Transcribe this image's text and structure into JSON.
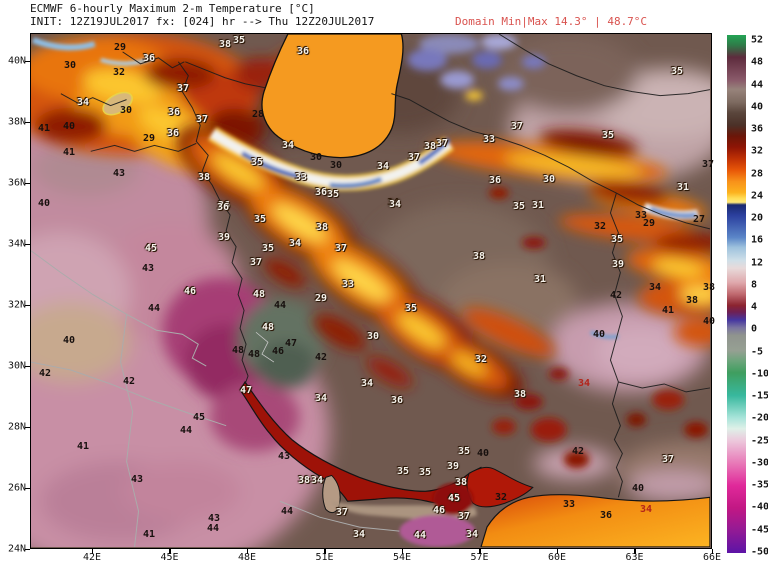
{
  "header": {
    "title": "ECMWF 6-hourly Maximum 2-m Temperature [°C]",
    "init_line": "INIT: 12Z19JUL2017 fx: [024] hr --> Thu 12Z20JUL2017",
    "domain_minmax": "Domain Min|Max 14.3° | 48.7°C",
    "domain_min": "14.3",
    "domain_max": "48.7"
  },
  "palette": {
    "header_red": "#d9534f",
    "caspian_orange": "#f59a20",
    "gulf_dark_red": "#9e1208",
    "arabian_sea_orange": "#f28c12",
    "saudi_pink": "#c88fa5",
    "hot_magenta": "#a63c74",
    "plateau_gray": "#70594f",
    "zagros_yellow": "#ffd84a",
    "cold_blue": "#4a6ec0"
  },
  "axes": {
    "lat_labels": [
      "40N",
      "38N",
      "36N",
      "34N",
      "32N",
      "30N",
      "28N",
      "26N",
      "24N"
    ],
    "lon_labels": [
      "42E",
      "45E",
      "48E",
      "51E",
      "54E",
      "57E",
      "60E",
      "63E",
      "66E"
    ]
  },
  "colorbar": {
    "ticks": [
      "52",
      "48",
      "44",
      "40",
      "36",
      "32",
      "28",
      "24",
      "20",
      "16",
      "12",
      "8",
      "4",
      "0",
      "-5",
      "-10",
      "-15",
      "-20",
      "-25",
      "-30",
      "-35",
      "-40",
      "-45",
      "-50"
    ],
    "stops": [
      [
        0,
        "#23a455"
      ],
      [
        2,
        "#2f7a48"
      ],
      [
        4.3,
        "#5e2b3d"
      ],
      [
        8.7,
        "#8a5a6a"
      ],
      [
        10.5,
        "#97837b"
      ],
      [
        13,
        "#7d6a60"
      ],
      [
        15,
        "#5a463c"
      ],
      [
        17.4,
        "#4b3128"
      ],
      [
        19.5,
        "#6b1608"
      ],
      [
        21.7,
        "#8f1505"
      ],
      [
        24,
        "#c23305"
      ],
      [
        26.1,
        "#e85708"
      ],
      [
        28.3,
        "#f8921a"
      ],
      [
        30.4,
        "#fcb21e"
      ],
      [
        31.5,
        "#ffdc55"
      ],
      [
        32.3,
        "#ffe878"
      ],
      [
        32.8,
        "#1a2a6e"
      ],
      [
        34.8,
        "#2b3f9e"
      ],
      [
        39.1,
        "#5b86c8"
      ],
      [
        41,
        "#9ec2dd"
      ],
      [
        43.5,
        "#cfdfe8"
      ],
      [
        45,
        "#e8dada"
      ],
      [
        47.8,
        "#dfa8ac"
      ],
      [
        50,
        "#c06a70"
      ],
      [
        52.2,
        "#8c2430"
      ],
      [
        53.5,
        "#6e2054"
      ],
      [
        55,
        "#4636a0"
      ],
      [
        56.5,
        "#7a74a0"
      ],
      [
        58,
        "#90948e"
      ],
      [
        60.9,
        "#96a093"
      ],
      [
        63,
        "#6aa47a"
      ],
      [
        65.2,
        "#3f9e5f"
      ],
      [
        69.6,
        "#38b89e"
      ],
      [
        73.9,
        "#a8e4da"
      ],
      [
        76,
        "#dff0e8"
      ],
      [
        78.3,
        "#ecc8dc"
      ],
      [
        82.6,
        "#e87ab8"
      ],
      [
        87,
        "#e0299a"
      ],
      [
        91.3,
        "#c21884"
      ],
      [
        95.7,
        "#921a95"
      ],
      [
        100,
        "#5c14a6"
      ]
    ]
  },
  "map": {
    "labels": [
      [
        "29",
        89,
        14,
        "k"
      ],
      [
        "35",
        208,
        7,
        "w"
      ],
      [
        "38",
        194,
        11,
        "w"
      ],
      [
        "30",
        39,
        32,
        "k"
      ],
      [
        "32",
        88,
        39,
        "k"
      ],
      [
        "36",
        118,
        25,
        "w"
      ],
      [
        "37",
        152,
        55,
        "w"
      ],
      [
        "34",
        52,
        69,
        "w"
      ],
      [
        "30",
        95,
        77,
        "k"
      ],
      [
        "36",
        143,
        79,
        "w"
      ],
      [
        "36",
        142,
        100,
        "w"
      ],
      [
        "29",
        118,
        105,
        "k"
      ],
      [
        "41",
        13,
        95,
        "k"
      ],
      [
        "40",
        38,
        93,
        "k"
      ],
      [
        "28",
        227,
        81,
        "k"
      ],
      [
        "36",
        272,
        18,
        "w"
      ],
      [
        "37",
        171,
        86,
        "w"
      ],
      [
        "43",
        88,
        140,
        "k"
      ],
      [
        "41",
        38,
        119,
        "k"
      ],
      [
        "40",
        13,
        170,
        "k"
      ],
      [
        "34",
        257,
        112,
        "w"
      ],
      [
        "30",
        285,
        124,
        "k"
      ],
      [
        "30",
        305,
        132,
        "k"
      ],
      [
        "34",
        352,
        133,
        "w"
      ],
      [
        "37",
        383,
        124,
        "w"
      ],
      [
        "38",
        399,
        113,
        "w"
      ],
      [
        "37",
        411,
        110,
        "w"
      ],
      [
        "35",
        226,
        129,
        "w"
      ],
      [
        "38",
        173,
        144,
        "w"
      ],
      [
        "33",
        270,
        144,
        "w"
      ],
      [
        "36",
        290,
        159,
        "w"
      ],
      [
        "35",
        302,
        161,
        "w"
      ],
      [
        "36",
        193,
        172,
        "w"
      ],
      [
        "34",
        363,
        170,
        "w"
      ],
      [
        "33",
        458,
        106,
        "w"
      ],
      [
        "36",
        464,
        147,
        "w"
      ],
      [
        "35",
        646,
        38,
        "w"
      ],
      [
        "37",
        486,
        93,
        "w"
      ],
      [
        "35",
        577,
        102,
        "w"
      ],
      [
        "30",
        518,
        146,
        "w"
      ],
      [
        "37",
        677,
        131,
        "k"
      ],
      [
        "31",
        652,
        154,
        "w"
      ],
      [
        "35",
        488,
        173,
        "w"
      ],
      [
        "31",
        507,
        172,
        "w"
      ],
      [
        "33",
        610,
        182,
        "k"
      ],
      [
        "29",
        618,
        190,
        "k"
      ],
      [
        "32",
        569,
        193,
        "k"
      ],
      [
        "35",
        586,
        206,
        "w"
      ],
      [
        "27",
        668,
        186,
        "k"
      ],
      [
        "39",
        587,
        231,
        "w"
      ],
      [
        "31",
        509,
        246,
        "w"
      ],
      [
        "34",
        624,
        254,
        "k"
      ],
      [
        "42",
        585,
        262,
        "k"
      ],
      [
        "38",
        678,
        254,
        "k"
      ],
      [
        "38",
        661,
        267,
        "k"
      ],
      [
        "41",
        637,
        277,
        "k"
      ],
      [
        "40",
        678,
        288,
        "k"
      ],
      [
        "40",
        568,
        301,
        "k"
      ],
      [
        "34",
        364,
        171,
        "w"
      ],
      [
        "38",
        291,
        194,
        "w"
      ],
      [
        "34",
        264,
        210,
        "w"
      ],
      [
        "37",
        310,
        215,
        "w"
      ],
      [
        "33",
        317,
        251,
        "w"
      ],
      [
        "29",
        290,
        265,
        "w"
      ],
      [
        "35",
        380,
        275,
        "w"
      ],
      [
        "38",
        448,
        223,
        "w"
      ],
      [
        "30",
        342,
        303,
        "w"
      ],
      [
        "32",
        450,
        326,
        "w"
      ],
      [
        "36",
        192,
        174,
        "w"
      ],
      [
        "35",
        229,
        186,
        "w"
      ],
      [
        "39",
        193,
        204,
        "w"
      ],
      [
        "35",
        237,
        215,
        "w"
      ],
      [
        "37",
        225,
        229,
        "w"
      ],
      [
        "45",
        120,
        215,
        "w"
      ],
      [
        "43",
        117,
        235,
        "k"
      ],
      [
        "46",
        159,
        258,
        "w"
      ],
      [
        "44",
        123,
        275,
        "k"
      ],
      [
        "40",
        38,
        307,
        "k"
      ],
      [
        "42",
        14,
        340,
        "k"
      ],
      [
        "48",
        228,
        261,
        "w"
      ],
      [
        "48",
        237,
        294,
        "w"
      ],
      [
        "48",
        207,
        317,
        "k"
      ],
      [
        "48",
        223,
        321,
        "k"
      ],
      [
        "44",
        249,
        272,
        "k"
      ],
      [
        "47",
        260,
        310,
        "k"
      ],
      [
        "46",
        247,
        318,
        "k"
      ],
      [
        "42",
        290,
        324,
        "k"
      ],
      [
        "42",
        98,
        348,
        "k"
      ],
      [
        "47",
        215,
        357,
        "w"
      ],
      [
        "45",
        168,
        384,
        "k"
      ],
      [
        "44",
        155,
        397,
        "k"
      ],
      [
        "41",
        52,
        413,
        "k"
      ],
      [
        "43",
        106,
        446,
        "k"
      ],
      [
        "43",
        183,
        485,
        "k"
      ],
      [
        "44",
        182,
        495,
        "k"
      ],
      [
        "41",
        118,
        501,
        "k"
      ],
      [
        "34",
        336,
        350,
        "w"
      ],
      [
        "34",
        290,
        365,
        "w"
      ],
      [
        "36",
        366,
        367,
        "w"
      ],
      [
        "43",
        253,
        423,
        "k"
      ],
      [
        "38",
        273,
        447,
        "w"
      ],
      [
        "34",
        286,
        447,
        "w"
      ],
      [
        "44",
        256,
        478,
        "k"
      ],
      [
        "37",
        311,
        479,
        "w"
      ],
      [
        "34",
        328,
        501,
        "w"
      ],
      [
        "35",
        372,
        438,
        "w"
      ],
      [
        "35",
        394,
        439,
        "w"
      ],
      [
        "39",
        422,
        433,
        "w"
      ],
      [
        "35",
        433,
        418,
        "w"
      ],
      [
        "40",
        452,
        420,
        "k"
      ],
      [
        "38",
        430,
        449,
        "w"
      ],
      [
        "45",
        423,
        465,
        "w"
      ],
      [
        "46",
        408,
        477,
        "w"
      ],
      [
        "37",
        433,
        483,
        "w"
      ],
      [
        "34",
        441,
        501,
        "w"
      ],
      [
        "44",
        389,
        502,
        "w"
      ],
      [
        "32",
        470,
        464,
        "k"
      ],
      [
        "38",
        489,
        361,
        "w"
      ],
      [
        "34",
        553,
        350,
        "r"
      ],
      [
        "42",
        547,
        418,
        "k"
      ],
      [
        "37",
        637,
        426,
        "w"
      ],
      [
        "40",
        607,
        455,
        "k"
      ],
      [
        "33",
        538,
        471,
        "k"
      ],
      [
        "36",
        575,
        482,
        "k"
      ],
      [
        "34",
        615,
        476,
        "r"
      ]
    ]
  }
}
